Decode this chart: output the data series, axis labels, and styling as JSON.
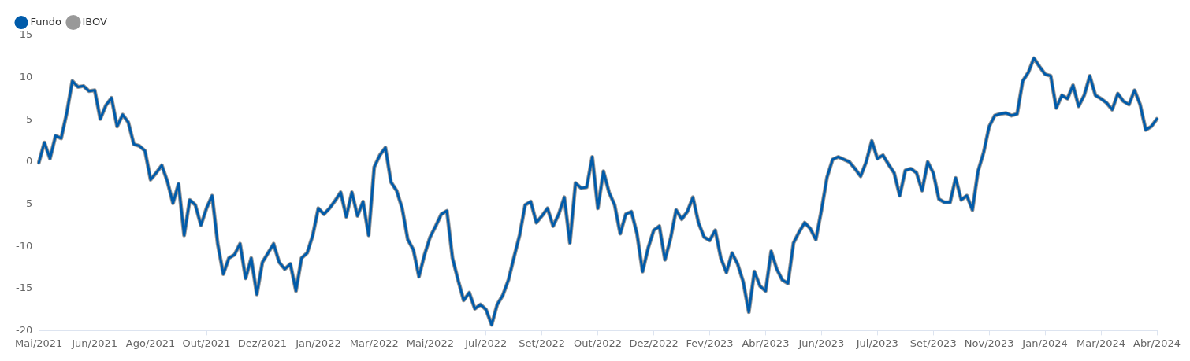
{
  "chart_data": {
    "type": "line",
    "categories": [
      "Mai/2021",
      null,
      null,
      null,
      null,
      null,
      null,
      null,
      null,
      null,
      "Jun/2021",
      null,
      null,
      null,
      null,
      null,
      null,
      null,
      null,
      null,
      "Ago/2021",
      null,
      null,
      null,
      null,
      null,
      null,
      null,
      null,
      null,
      "Out/2021",
      null,
      null,
      null,
      null,
      null,
      null,
      null,
      null,
      null,
      "Dez/2021",
      null,
      null,
      null,
      null,
      null,
      null,
      null,
      null,
      null,
      "Jan/2022",
      null,
      null,
      null,
      null,
      null,
      null,
      null,
      null,
      null,
      "Mar/2022",
      null,
      null,
      null,
      null,
      null,
      null,
      null,
      null,
      null,
      "Mai/2022",
      null,
      null,
      null,
      null,
      null,
      null,
      null,
      null,
      null,
      "Jul/2022",
      null,
      null,
      null,
      null,
      null,
      null,
      null,
      null,
      null,
      "Set/2022",
      null,
      null,
      null,
      null,
      null,
      null,
      null,
      null,
      null,
      "Out/2022",
      null,
      null,
      null,
      null,
      null,
      null,
      null,
      null,
      null,
      "Dez/2022",
      null,
      null,
      null,
      null,
      null,
      null,
      null,
      null,
      null,
      "Fev/2023",
      null,
      null,
      null,
      null,
      null,
      null,
      null,
      null,
      null,
      "Abr/2023",
      null,
      null,
      null,
      null,
      null,
      null,
      null,
      null,
      null,
      "Jun/2023",
      null,
      null,
      null,
      null,
      null,
      null,
      null,
      null,
      null,
      "Jul/2023",
      null,
      null,
      null,
      null,
      null,
      null,
      null,
      null,
      null,
      "Set/2023",
      null,
      null,
      null,
      null,
      null,
      null,
      null,
      null,
      null,
      "Nov/2023",
      null,
      null,
      null,
      null,
      null,
      null,
      null,
      null,
      null,
      "Jan/2024",
      null,
      null,
      null,
      null,
      null,
      null,
      null,
      null,
      null,
      "Mar/2024",
      null,
      null,
      null,
      null,
      null,
      null,
      null,
      null,
      null,
      "Abr/2024"
    ],
    "series": [
      {
        "name": "Fundo",
        "color": "#005baa",
        "values": [
          -0.1,
          2.3,
          0.4,
          3.1,
          2.8,
          5.8,
          9.6,
          8.9,
          9.0,
          8.4,
          8.5,
          5.1,
          6.7,
          7.6,
          4.2,
          5.6,
          4.7,
          2.1,
          1.9,
          1.3,
          -2.1,
          -1.3,
          -0.4,
          -2.3,
          -4.9,
          -2.6,
          -8.7,
          -4.5,
          -5.1,
          -7.5,
          -5.5,
          -4.0,
          -9.7,
          -13.3,
          -11.4,
          -11.0,
          -9.7,
          -13.8,
          -11.4,
          -15.7,
          -11.9,
          -10.8,
          -9.7,
          -11.9,
          -12.7,
          -12.1,
          -15.3,
          -11.4,
          -10.8,
          -8.7,
          -5.5,
          -6.2,
          -5.5,
          -4.6,
          -3.6,
          -6.5,
          -3.6,
          -6.4,
          -4.7,
          -8.7,
          -0.6,
          0.8,
          1.7,
          -2.4,
          -3.4,
          -5.5,
          -9.2,
          -10.4,
          -13.6,
          -11.0,
          -8.9,
          -7.6,
          -6.2,
          -5.8,
          -11.4,
          -14.0,
          -16.4,
          -15.5,
          -17.4,
          -16.9,
          -17.5,
          -19.3,
          -16.9,
          -15.8,
          -14.0,
          -11.3,
          -8.7,
          -5.1,
          -4.7,
          -7.2,
          -6.4,
          -5.5,
          -7.6,
          -6.2,
          -4.2,
          -9.6,
          -2.5,
          -3.1,
          -3.0,
          0.6,
          -5.5,
          -1.1,
          -3.6,
          -5.1,
          -8.5,
          -6.2,
          -5.9,
          -8.5,
          -13.0,
          -10.2,
          -8.1,
          -7.6,
          -11.6,
          -9.1,
          -5.7,
          -6.8,
          -5.9,
          -4.2,
          -7.2,
          -8.9,
          -9.3,
          -8.1,
          -11.4,
          -13.1,
          -10.8,
          -12.1,
          -14.2,
          -17.8,
          -13.0,
          -14.7,
          -15.3,
          -10.6,
          -12.7,
          -14.0,
          -14.4,
          -9.6,
          -8.3,
          -7.2,
          -7.9,
          -9.2,
          -5.7,
          -1.8,
          0.3,
          0.6,
          0.3,
          0.0,
          -0.8,
          -1.7,
          0.0,
          2.5,
          0.4,
          0.8,
          -0.3,
          -1.3,
          -4.0,
          -1.0,
          -0.8,
          -1.3,
          -3.4,
          0.0,
          -1.3,
          -4.4,
          -4.8,
          -4.8,
          -1.9,
          -4.5,
          -4.0,
          -5.7,
          -1.1,
          1.1,
          4.2,
          5.5,
          5.7,
          5.8,
          5.5,
          5.7,
          9.6,
          10.6,
          12.3,
          11.3,
          10.4,
          10.2,
          6.4,
          7.9,
          7.5,
          9.1,
          6.6,
          7.9,
          10.2,
          7.9,
          7.5,
          7.0,
          6.2,
          8.1,
          7.2,
          6.8,
          8.5,
          6.8,
          3.8,
          4.2,
          5.1
        ]
      },
      {
        "name": "IBOV",
        "color": "#999999",
        "values": [
          -0.1,
          2.3,
          0.4,
          3.1,
          2.8,
          5.8,
          9.6,
          8.9,
          9.0,
          8.4,
          8.5,
          5.1,
          6.7,
          7.6,
          4.2,
          5.6,
          4.7,
          2.1,
          1.9,
          1.3,
          -2.1,
          -1.3,
          -0.4,
          -2.3,
          -4.9,
          -2.6,
          -8.7,
          -4.5,
          -5.1,
          -7.5,
          -5.5,
          -4.0,
          -9.7,
          -13.3,
          -11.4,
          -11.0,
          -9.7,
          -13.8,
          -11.4,
          -15.7,
          -11.9,
          -10.8,
          -9.7,
          -11.9,
          -12.7,
          -12.1,
          -15.3,
          -11.4,
          -10.8,
          -8.7,
          -5.5,
          -6.2,
          -5.5,
          -4.6,
          -3.6,
          -6.5,
          -3.6,
          -6.4,
          -4.7,
          -8.7,
          -0.6,
          0.8,
          1.7,
          -2.4,
          -3.4,
          -5.5,
          -9.2,
          -10.4,
          -13.6,
          -11.0,
          -8.9,
          -7.6,
          -6.2,
          -5.8,
          -11.4,
          -14.0,
          -16.4,
          -15.5,
          -17.4,
          -16.9,
          -17.5,
          -19.3,
          -16.9,
          -15.8,
          -14.0,
          -11.3,
          -8.7,
          -5.1,
          -4.7,
          -7.2,
          -6.4,
          -5.5,
          -7.6,
          -6.2,
          -4.2,
          -9.6,
          -2.5,
          -3.1,
          -3.0,
          0.6,
          -5.5,
          -1.1,
          -3.6,
          -5.1,
          -8.5,
          -6.2,
          -5.9,
          -8.5,
          -13.0,
          -10.2,
          -8.1,
          -7.6,
          -11.6,
          -9.1,
          -5.7,
          -6.8,
          -5.9,
          -4.2,
          -7.2,
          -8.9,
          -9.3,
          -8.1,
          -11.4,
          -13.1,
          -10.8,
          -12.1,
          -14.2,
          -17.8,
          -13.0,
          -14.7,
          -15.3,
          -10.6,
          -12.7,
          -14.0,
          -14.4,
          -9.6,
          -8.3,
          -7.2,
          -7.9,
          -9.2,
          -5.7,
          -1.8,
          0.3,
          0.6,
          0.3,
          0.0,
          -0.8,
          -1.7,
          0.0,
          2.5,
          0.4,
          0.8,
          -0.3,
          -1.3,
          -4.0,
          -1.0,
          -0.8,
          -1.3,
          -3.4,
          0.0,
          -1.3,
          -4.4,
          -4.8,
          -4.8,
          -1.9,
          -4.5,
          -4.0,
          -5.7,
          -1.1,
          1.1,
          4.2,
          5.5,
          5.7,
          5.8,
          5.5,
          5.7,
          9.6,
          10.6,
          12.3,
          11.3,
          10.4,
          10.2,
          6.4,
          7.9,
          7.5,
          9.1,
          6.6,
          7.9,
          10.2,
          7.9,
          7.5,
          7.0,
          6.2,
          8.1,
          7.2,
          6.8,
          8.5,
          6.8,
          3.8,
          4.2,
          5.1
        ]
      }
    ],
    "ylim": [
      -20,
      15
    ],
    "yticks": [
      -20,
      -15,
      -10,
      -5,
      0,
      5,
      10,
      15
    ],
    "grid": false,
    "legend": "top left",
    "marker": "none",
    "line_style": "solid"
  }
}
